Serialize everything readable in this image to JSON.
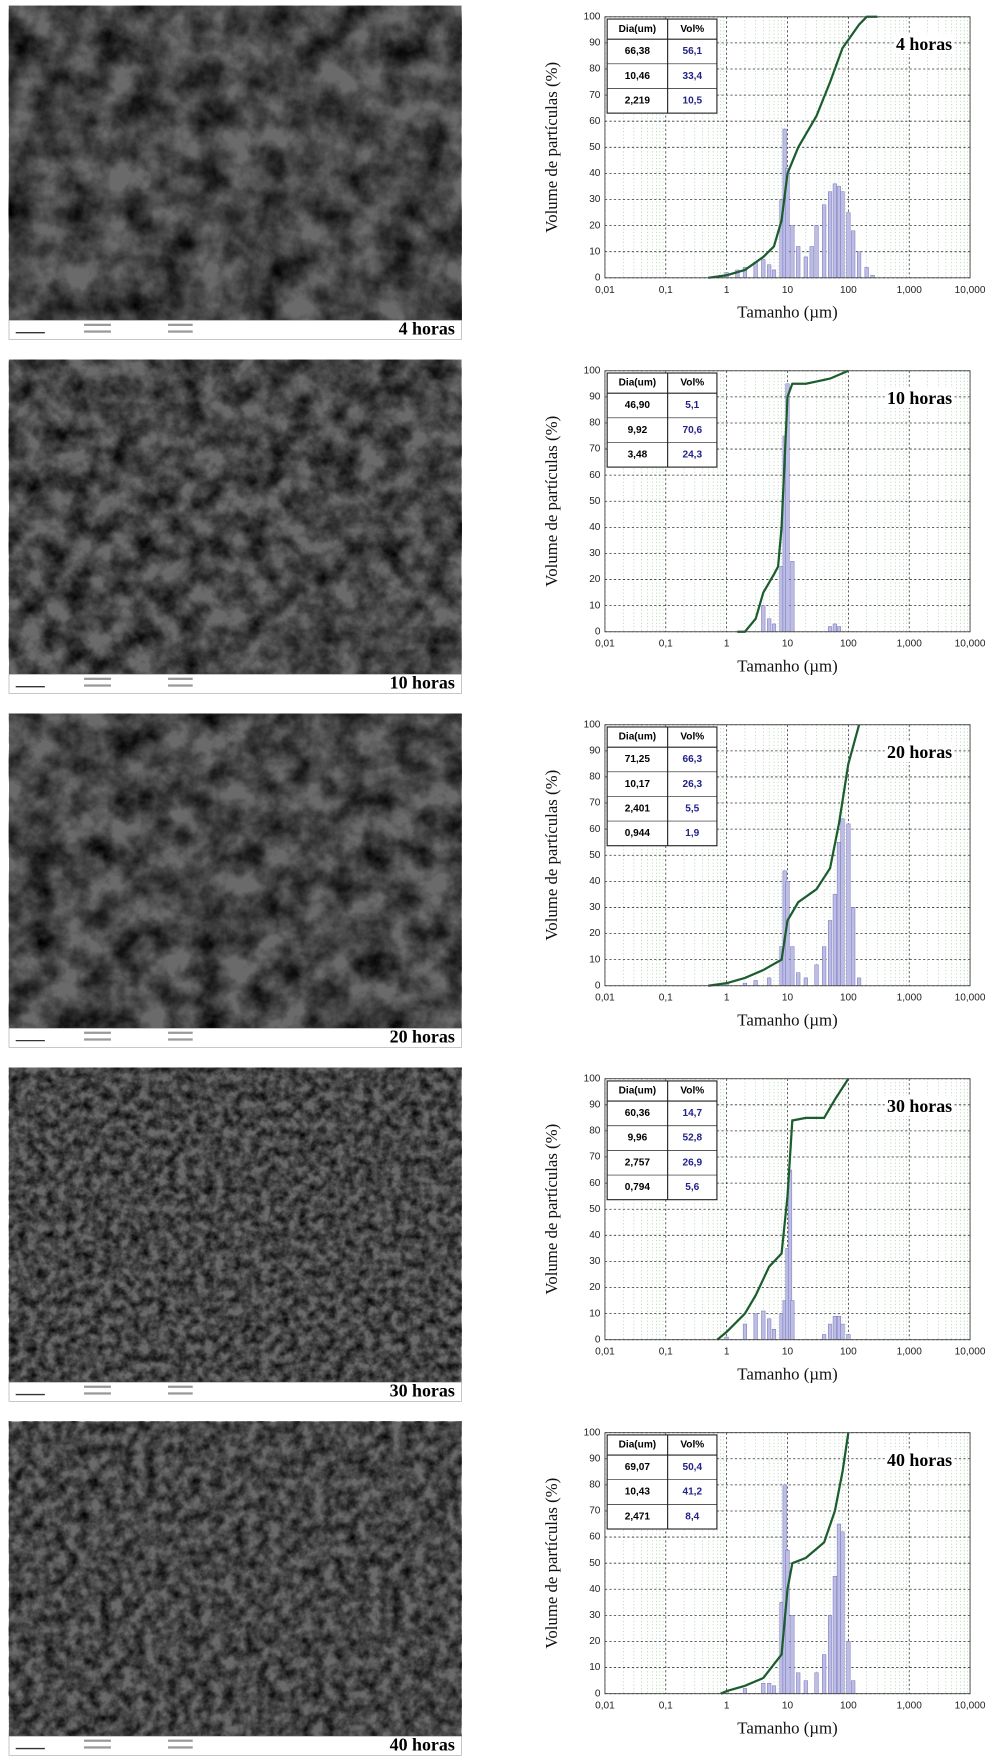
{
  "images": [
    {
      "label": "4 horas"
    },
    {
      "label": "10 horas"
    },
    {
      "label": "20 horas"
    },
    {
      "label": "30 horas"
    },
    {
      "label": "40 horas"
    }
  ],
  "chart_data": [
    {
      "type": "histogram",
      "label": "4 horas",
      "xlabel": "Tamanho (µm)",
      "ylabel": "Volume de partículas (%)",
      "log_x": true,
      "grid": true,
      "xlim": [
        0.01,
        10000
      ],
      "xticks": [
        {
          "value": 0.01,
          "label": "0,01"
        },
        {
          "value": 0.1,
          "label": "0,1"
        },
        1,
        10,
        100,
        {
          "value": 1000,
          "label": "1,000"
        },
        {
          "value": 10000,
          "label": "10,000"
        }
      ],
      "ylim": [
        0,
        100
      ],
      "yticks": [
        0,
        10,
        20,
        30,
        40,
        50,
        60,
        70,
        80,
        90,
        100
      ],
      "table": {
        "header": [
          "Dia(um)",
          "Vol%"
        ],
        "rows": [
          [
            "66,38",
            "56,1"
          ],
          [
            "10,46",
            "33,4"
          ],
          [
            "2,219",
            "10,5"
          ]
        ]
      },
      "series": [
        {
          "type": "bar",
          "color": "#bcbce6",
          "x": [
            0.8,
            1,
            1.5,
            2,
            3,
            4,
            5,
            6,
            8,
            9,
            10,
            12,
            15,
            20,
            25,
            30,
            40,
            50,
            60,
            70,
            80,
            100,
            120,
            150,
            200,
            250
          ],
          "values": [
            1,
            2,
            3,
            4,
            6,
            7,
            5,
            3,
            30,
            57,
            42,
            20,
            12,
            8,
            12,
            20,
            28,
            33,
            36,
            35,
            33,
            25,
            18,
            10,
            4,
            1
          ]
        },
        {
          "type": "line",
          "color": "#1b5e2e",
          "x": [
            0.5,
            1,
            2,
            4,
            6,
            8,
            10,
            15,
            20,
            30,
            50,
            80,
            150,
            200,
            300
          ],
          "values": [
            0,
            1,
            3,
            8,
            12,
            22,
            40,
            50,
            55,
            62,
            75,
            88,
            97,
            100,
            100
          ]
        }
      ]
    },
    {
      "type": "histogram",
      "label": "10 horas",
      "xlabel": "Tamanho (µm)",
      "ylabel": "Volume de partículas (%)",
      "log_x": true,
      "grid": true,
      "xlim": [
        0.01,
        10000
      ],
      "xticks": [
        {
          "value": 0.01,
          "label": "0,01"
        },
        {
          "value": 0.1,
          "label": "0,1"
        },
        1,
        10,
        100,
        {
          "value": 1000,
          "label": "1,000"
        },
        {
          "value": 10000,
          "label": "10,000"
        }
      ],
      "ylim": [
        0,
        100
      ],
      "yticks": [
        0,
        10,
        20,
        30,
        40,
        50,
        60,
        70,
        80,
        90,
        100
      ],
      "table": {
        "header": [
          "Dia(um)",
          "Vol%"
        ],
        "rows": [
          [
            "46,90",
            "5,1"
          ],
          [
            "9,92",
            "70,6"
          ],
          [
            "3,48",
            "24,3"
          ]
        ]
      },
      "series": [
        {
          "type": "bar",
          "color": "#bcbce6",
          "x": [
            4,
            5,
            6,
            8,
            9,
            10,
            12,
            50,
            60,
            70
          ],
          "values": [
            10,
            5,
            3,
            25,
            75,
            95,
            27,
            2,
            3,
            2
          ]
        },
        {
          "type": "line",
          "color": "#1b5e2e",
          "x": [
            1.5,
            2,
            3,
            4,
            6,
            7,
            8,
            10,
            12,
            20,
            50,
            100
          ],
          "values": [
            0,
            0,
            5,
            15,
            22,
            25,
            40,
            90,
            95,
            95,
            97,
            100
          ]
        }
      ]
    },
    {
      "type": "histogram",
      "label": "20 horas",
      "xlabel": "Tamanho (µm)",
      "ylabel": "Volume de partículas (%)",
      "log_x": true,
      "grid": true,
      "xlim": [
        0.01,
        10000
      ],
      "xticks": [
        {
          "value": 0.01,
          "label": "0,01"
        },
        {
          "value": 0.1,
          "label": "0,1"
        },
        1,
        10,
        100,
        {
          "value": 1000,
          "label": "1,000"
        },
        {
          "value": 10000,
          "label": "10,000"
        }
      ],
      "ylim": [
        0,
        100
      ],
      "yticks": [
        0,
        10,
        20,
        30,
        40,
        50,
        60,
        70,
        80,
        90,
        100
      ],
      "table": {
        "header": [
          "Dia(um)",
          "Vol%"
        ],
        "rows": [
          [
            "71,25",
            "66,3"
          ],
          [
            "10,17",
            "26,3"
          ],
          [
            "2,401",
            "5,5"
          ],
          [
            "0,944",
            "1,9"
          ]
        ]
      },
      "series": [
        {
          "type": "bar",
          "color": "#bcbce6",
          "x": [
            1,
            2,
            3,
            5,
            8,
            9,
            10,
            12,
            15,
            20,
            30,
            40,
            50,
            60,
            70,
            80,
            100,
            120,
            150
          ],
          "values": [
            1,
            1,
            2,
            3,
            15,
            44,
            40,
            15,
            5,
            3,
            8,
            15,
            25,
            35,
            55,
            64,
            62,
            30,
            3
          ]
        },
        {
          "type": "line",
          "color": "#1b5e2e",
          "x": [
            0.5,
            1,
            2,
            4,
            8,
            10,
            15,
            30,
            50,
            70,
            100,
            150
          ],
          "values": [
            0,
            1,
            3,
            6,
            10,
            25,
            32,
            37,
            45,
            62,
            85,
            100
          ]
        }
      ]
    },
    {
      "type": "histogram",
      "label": "30 horas",
      "xlabel": "Tamanho (µm)",
      "ylabel": "Volume de partículas (%)",
      "log_x": true,
      "grid": true,
      "xlim": [
        0.01,
        10000
      ],
      "xticks": [
        {
          "value": 0.01,
          "label": "0,01"
        },
        {
          "value": 0.1,
          "label": "0,1"
        },
        1,
        10,
        100,
        {
          "value": 1000,
          "label": "1,000"
        },
        {
          "value": 10000,
          "label": "10,000"
        }
      ],
      "ylim": [
        0,
        100
      ],
      "yticks": [
        0,
        10,
        20,
        30,
        40,
        50,
        60,
        70,
        80,
        90,
        100
      ],
      "table": {
        "header": [
          "Dia(um)",
          "Vol%"
        ],
        "rows": [
          [
            "60,36",
            "14,7"
          ],
          [
            "9,96",
            "52,8"
          ],
          [
            "2,757",
            "26,9"
          ],
          [
            "0,794",
            "5,6"
          ]
        ]
      },
      "series": [
        {
          "type": "bar",
          "color": "#bcbce6",
          "x": [
            1,
            2,
            3,
            4,
            5,
            6,
            8,
            9,
            10,
            11,
            12,
            40,
            50,
            60,
            70,
            80,
            100
          ],
          "values": [
            1,
            6,
            10,
            11,
            8,
            4,
            10,
            15,
            35,
            65,
            15,
            2,
            6,
            9,
            9,
            6,
            2
          ]
        },
        {
          "type": "line",
          "color": "#1b5e2e",
          "x": [
            0.7,
            1,
            2,
            3,
            5,
            8,
            10,
            12,
            20,
            40,
            60,
            100
          ],
          "values": [
            0,
            3,
            10,
            17,
            28,
            33,
            55,
            84,
            85,
            85,
            92,
            100
          ]
        }
      ]
    },
    {
      "type": "histogram",
      "label": "40 horas",
      "xlabel": "Tamanho (µm)",
      "ylabel": "Volume de partículas (%)",
      "log_x": true,
      "grid": true,
      "xlim": [
        0.01,
        10000
      ],
      "xticks": [
        {
          "value": 0.01,
          "label": "0,01"
        },
        {
          "value": 0.1,
          "label": "0,1"
        },
        1,
        10,
        100,
        {
          "value": 1000,
          "label": "1,000"
        },
        {
          "value": 10000,
          "label": "10,000"
        }
      ],
      "ylim": [
        0,
        100
      ],
      "yticks": [
        0,
        10,
        20,
        30,
        40,
        50,
        60,
        70,
        80,
        90,
        100
      ],
      "table": {
        "header": [
          "Dia(um)",
          "Vol%"
        ],
        "rows": [
          [
            "69,07",
            "50,4"
          ],
          [
            "10,43",
            "41,2"
          ],
          [
            "2,471",
            "8,4"
          ]
        ]
      },
      "series": [
        {
          "type": "bar",
          "color": "#bcbce6",
          "x": [
            1,
            2,
            4,
            5,
            6,
            8,
            9,
            10,
            12,
            15,
            20,
            30,
            40,
            50,
            60,
            70,
            80,
            100,
            120
          ],
          "values": [
            1,
            2,
            4,
            4,
            3,
            35,
            80,
            55,
            30,
            8,
            5,
            8,
            15,
            30,
            45,
            65,
            62,
            20,
            5
          ]
        },
        {
          "type": "line",
          "color": "#1b5e2e",
          "x": [
            0.8,
            1,
            2,
            4,
            8,
            10,
            12,
            20,
            40,
            60,
            80,
            100
          ],
          "values": [
            0,
            1,
            3,
            6,
            15,
            40,
            50,
            52,
            58,
            70,
            85,
            100
          ]
        }
      ]
    }
  ]
}
